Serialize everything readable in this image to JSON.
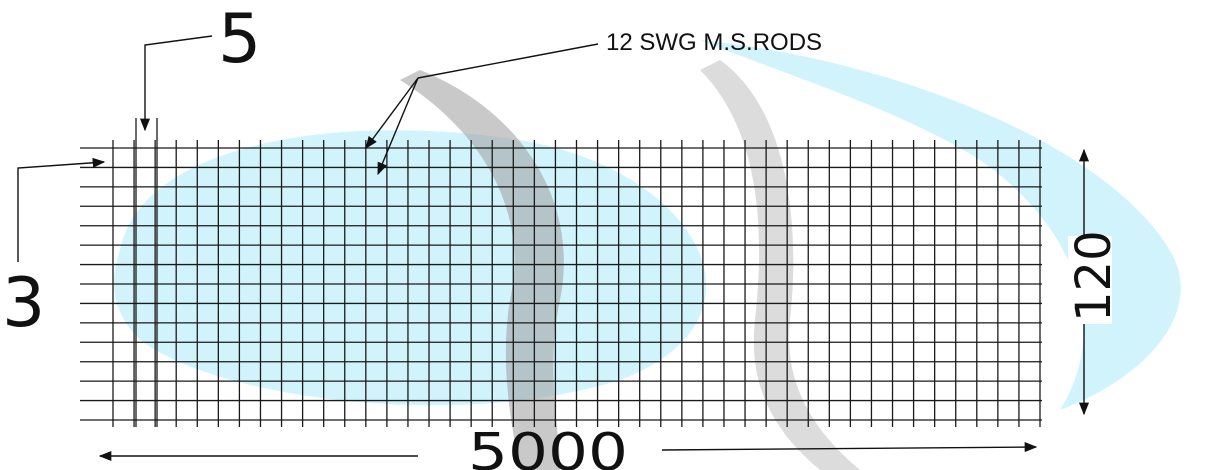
{
  "diagram": {
    "labels": {
      "rod_spec": "12 SWG M.S.RODS",
      "spacing_top": "5",
      "spacing_left": "3",
      "length": "5000",
      "height": "120"
    },
    "mesh": {
      "vertical_rods": 45,
      "horizontal_rods": 15
    },
    "colors": {
      "line": "#1a1a1a",
      "watermark_cyan": "#c7f1fa",
      "watermark_gray": "#9a9a9a"
    }
  }
}
